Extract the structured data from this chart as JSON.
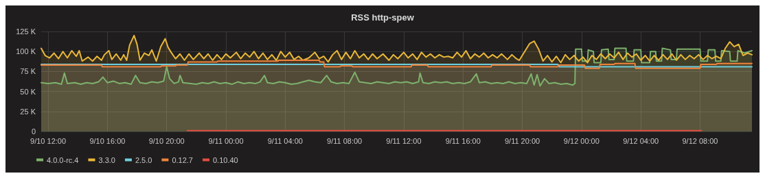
{
  "chart_data": {
    "type": "area",
    "title": "RSS http-spew",
    "xlim": [
      "--09-10T11:32",
      "--09-12T11:30"
    ],
    "xticks": [
      {
        "value": "--09-10T12:00",
        "label": "9/10 12:00"
      },
      {
        "value": "--09-10T16:00",
        "label": "9/10 16:00"
      },
      {
        "value": "--09-10T20:00",
        "label": "9/10 20:00"
      },
      {
        "value": "--09-11T00:00",
        "label": "9/11 00:00"
      },
      {
        "value": "--09-11T04:00",
        "label": "9/11 04:00"
      },
      {
        "value": "--09-11T08:00",
        "label": "9/11 08:00"
      },
      {
        "value": "--09-11T12:00",
        "label": "9/11 12:00"
      },
      {
        "value": "--09-11T16:00",
        "label": "9/11 16:00"
      },
      {
        "value": "--09-11T20:00",
        "label": "9/11 20:00"
      },
      {
        "value": "--09-12T00:00",
        "label": "9/12 00:00"
      },
      {
        "value": "--09-12T04:00",
        "label": "9/12 04:00"
      },
      {
        "value": "--09-12T08:00",
        "label": "9/12 08:00"
      }
    ],
    "ylim": [
      0,
      125
    ],
    "yticks": [
      0,
      {
        "value": 25,
        "label": "25 K"
      },
      {
        "value": 50,
        "label": "50 K"
      },
      {
        "value": 75,
        "label": "75 K"
      },
      {
        "value": 100,
        "label": "100 K"
      },
      {
        "value": 125,
        "label": "125 K"
      }
    ],
    "grid": true,
    "legend": "bottom",
    "line_style": "solid",
    "series": [
      {
        "name": "4.0.0-rc.4",
        "color": "#7eb26d",
        "x": [
          "--09-10T11:32",
          "--09-10T12:00",
          "--09-10T12:30",
          "--09-10T12:54",
          "--09-10T13:06",
          "--09-10T13:18",
          "--09-10T13:48",
          "--09-10T14:12",
          "--09-10T14:36",
          "--09-10T15:00",
          "--09-10T15:24",
          "--09-10T15:42",
          "--09-10T16:00",
          "--09-10T16:24",
          "--09-10T16:48",
          "--09-10T17:12",
          "--09-10T17:36",
          "--09-10T17:54",
          "--09-10T18:12",
          "--09-10T18:36",
          "--09-10T19:00",
          "--09-10T19:24",
          "--09-10T19:48",
          "--09-10T20:00",
          "--09-10T20:12",
          "--09-10T20:30",
          "--09-10T20:48",
          "--09-10T20:54",
          "--09-10T21:06",
          "--09-10T21:36",
          "--09-10T22:00",
          "--09-10T22:24",
          "--09-10T22:48",
          "--09-10T23:12",
          "--09-10T23:36",
          "--09-11T00:00",
          "--09-11T00:24",
          "--09-11T00:48",
          "--09-11T01:12",
          "--09-11T01:36",
          "--09-11T02:00",
          "--09-11T02:18",
          "--09-11T02:36",
          "--09-11T02:48",
          "--09-11T03:12",
          "--09-11T03:36",
          "--09-11T04:00",
          "--09-11T04:24",
          "--09-11T04:48",
          "--09-11T05:12",
          "--09-11T05:36",
          "--09-11T06:00",
          "--09-11T06:24",
          "--09-11T06:48",
          "--09-11T07:06",
          "--09-11T07:30",
          "--09-11T07:54",
          "--09-11T08:18",
          "--09-11T08:42",
          "--09-11T09:00",
          "--09-11T09:24",
          "--09-11T09:48",
          "--09-11T10:12",
          "--09-11T10:36",
          "--09-11T11:00",
          "--09-11T11:24",
          "--09-11T11:48",
          "--09-11T12:12",
          "--09-11T12:36",
          "--09-11T13:00",
          "--09-11T13:06",
          "--09-11T13:18",
          "--09-11T13:42",
          "--09-11T14:06",
          "--09-11T14:30",
          "--09-11T14:54",
          "--09-11T15:18",
          "--09-11T15:42",
          "--09-11T16:06",
          "--09-11T16:30",
          "--09-11T16:54",
          "--09-11T17:06",
          "--09-11T17:30",
          "--09-11T17:54",
          "--09-11T18:18",
          "--09-11T18:42",
          "--09-11T19:06",
          "--09-11T19:30",
          "--09-11T19:54",
          "--09-11T20:18",
          "--09-11T20:36",
          "--09-11T20:48",
          "--09-11T21:00",
          "--09-11T21:12",
          "--09-11T21:30",
          "--09-11T21:48",
          "--09-11T22:12",
          "--09-11T22:36",
          "--09-11T23:00",
          "--09-11T23:24",
          "--09-11T23:33",
          "--09-11T23:36",
          "--09-12T00:00",
          "--09-12T00:03",
          "--09-12T00:24",
          "--09-12T00:27",
          "--09-12T00:48",
          "--09-12T00:51",
          "--09-12T01:18",
          "--09-12T01:21",
          "--09-12T01:48",
          "--09-12T01:51",
          "--09-12T02:12",
          "--09-12T02:15",
          "--09-12T03:00",
          "--09-12T03:03",
          "--09-12T03:30",
          "--09-12T03:33",
          "--09-12T04:00",
          "--09-12T04:03",
          "--09-12T04:36",
          "--09-12T04:39",
          "--09-12T05:00",
          "--09-12T05:03",
          "--09-12T05:24",
          "--09-12T05:27",
          "--09-12T06:00",
          "--09-12T06:03",
          "--09-12T06:24",
          "--09-12T06:27",
          "--09-12T08:00",
          "--09-12T08:03",
          "--09-12T08:30",
          "--09-12T08:33",
          "--09-12T09:00",
          "--09-12T09:03",
          "--09-12T09:24",
          "--09-12T09:27",
          "--09-12T10:00",
          "--09-12T10:03",
          "--09-12T10:30",
          "--09-12T10:33",
          "--09-12T11:00",
          "--09-12T11:30"
        ],
        "values": [
          61,
          60,
          61,
          59,
          73,
          60,
          61,
          59,
          61,
          60,
          62,
          68,
          61,
          63,
          60,
          61,
          59,
          70,
          61,
          60,
          62,
          61,
          63,
          81,
          66,
          60,
          62,
          70,
          61,
          60,
          59,
          61,
          60,
          62,
          60,
          61,
          59,
          62,
          60,
          61,
          60,
          62,
          70,
          61,
          60,
          62,
          61,
          59,
          60,
          62,
          64,
          62,
          61,
          70,
          62,
          60,
          61,
          60,
          74,
          62,
          61,
          60,
          62,
          61,
          60,
          62,
          61,
          62,
          60,
          62,
          73,
          61,
          60,
          62,
          61,
          62,
          60,
          61,
          60,
          62,
          72,
          61,
          62,
          60,
          61,
          60,
          62,
          60,
          61,
          60,
          72,
          58,
          71,
          57,
          66,
          60,
          61,
          59,
          60,
          58,
          60,
          103,
          103,
          88,
          88,
          102,
          100,
          86,
          86,
          102,
          103,
          90,
          90,
          104,
          104,
          88,
          88,
          102,
          102,
          86,
          86,
          100,
          100,
          88,
          88,
          104,
          102,
          90,
          90,
          103,
          103,
          88,
          88,
          102,
          102,
          88,
          88,
          101,
          100,
          88,
          88,
          101,
          98,
          101
        ]
      },
      {
        "name": "3.3.0",
        "color": "#eab839",
        "x": [
          "--09-10T11:32",
          "--09-10T11:48",
          "--09-10T12:06",
          "--09-10T12:24",
          "--09-10T12:42",
          "--09-10T13:00",
          "--09-10T13:18",
          "--09-10T13:36",
          "--09-10T13:54",
          "--09-10T14:06",
          "--09-10T14:18",
          "--09-10T14:42",
          "--09-10T15:00",
          "--09-10T15:18",
          "--09-10T15:36",
          "--09-10T15:48",
          "--09-10T16:06",
          "--09-10T16:18",
          "--09-10T16:36",
          "--09-10T16:54",
          "--09-10T17:06",
          "--09-10T17:18",
          "--09-10T17:30",
          "--09-10T17:48",
          "--09-10T18:00",
          "--09-10T18:12",
          "--09-10T18:30",
          "--09-10T18:48",
          "--09-10T19:00",
          "--09-10T19:18",
          "--09-10T19:36",
          "--09-10T19:54",
          "--09-10T20:06",
          "--09-10T20:18",
          "--09-10T20:36",
          "--09-10T20:54",
          "--09-10T21:12",
          "--09-10T21:30",
          "--09-10T21:48",
          "--09-10T22:12",
          "--09-10T22:30",
          "--09-10T22:48",
          "--09-10T23:06",
          "--09-10T23:24",
          "--09-10T23:42",
          "--09-11T00:00",
          "--09-11T00:18",
          "--09-11T00:42",
          "--09-11T01:00",
          "--09-11T01:18",
          "--09-11T01:36",
          "--09-11T01:54",
          "--09-11T02:12",
          "--09-11T02:30",
          "--09-11T02:48",
          "--09-11T03:06",
          "--09-11T03:24",
          "--09-11T03:42",
          "--09-11T04:00",
          "--09-11T04:18",
          "--09-11T04:36",
          "--09-11T04:54",
          "--09-11T05:12",
          "--09-11T05:36",
          "--09-11T06:00",
          "--09-11T06:18",
          "--09-11T06:36",
          "--09-11T06:54",
          "--09-11T07:12",
          "--09-11T07:30",
          "--09-11T07:48",
          "--09-11T08:06",
          "--09-11T08:24",
          "--09-11T08:42",
          "--09-11T09:00",
          "--09-11T09:18",
          "--09-11T09:36",
          "--09-11T09:54",
          "--09-11T10:12",
          "--09-11T10:36",
          "--09-11T11:00",
          "--09-11T11:18",
          "--09-11T11:36",
          "--09-11T12:00",
          "--09-11T12:18",
          "--09-11T12:36",
          "--09-11T12:54",
          "--09-11T13:12",
          "--09-11T13:30",
          "--09-11T13:48",
          "--09-11T14:06",
          "--09-11T14:24",
          "--09-11T14:42",
          "--09-11T15:00",
          "--09-11T15:18",
          "--09-11T15:36",
          "--09-11T15:54",
          "--09-11T16:12",
          "--09-11T16:30",
          "--09-11T16:48",
          "--09-11T17:06",
          "--09-11T17:24",
          "--09-11T17:42",
          "--09-11T18:00",
          "--09-11T18:18",
          "--09-11T18:36",
          "--09-11T19:00",
          "--09-11T19:18",
          "--09-11T19:36",
          "--09-11T19:48",
          "--09-11T20:12",
          "--09-11T20:30",
          "--09-11T20:48",
          "--09-11T21:06",
          "--09-11T21:24",
          "--09-11T21:42",
          "--09-11T22:00",
          "--09-11T22:18",
          "--09-11T22:36",
          "--09-11T22:54",
          "--09-11T23:12",
          "--09-11T23:30",
          "--09-11T23:48",
          "--09-12T00:06",
          "--09-12T00:24",
          "--09-12T00:42",
          "--09-12T01:00",
          "--09-12T01:18",
          "--09-12T01:36",
          "--09-12T01:54",
          "--09-12T02:12",
          "--09-12T02:30",
          "--09-12T02:48",
          "--09-12T03:06",
          "--09-12T03:24",
          "--09-12T03:42",
          "--09-12T04:00",
          "--09-12T04:18",
          "--09-12T04:36",
          "--09-12T04:54",
          "--09-12T05:12",
          "--09-12T05:30",
          "--09-12T05:48",
          "--09-12T06:06",
          "--09-12T06:24",
          "--09-12T06:42",
          "--09-12T07:00",
          "--09-12T07:18",
          "--09-12T07:36",
          "--09-12T07:54",
          "--09-12T08:12",
          "--09-12T08:30",
          "--09-12T08:48",
          "--09-12T09:06",
          "--09-12T09:24",
          "--09-12T09:42",
          "--09-12T10:00",
          "--09-12T10:18",
          "--09-12T10:36",
          "--09-12T10:54",
          "--09-12T11:12",
          "--09-12T11:30"
        ],
        "values": [
          104,
          95,
          92,
          98,
          91,
          100,
          92,
          101,
          94,
          101,
          88,
          93,
          88,
          94,
          89,
          96,
          101,
          90,
          97,
          89,
          96,
          89,
          108,
          120,
          109,
          89,
          98,
          95,
          102,
          88,
          106,
          116,
          105,
          99,
          91,
          97,
          89,
          97,
          90,
          98,
          91,
          97,
          89,
          96,
          90,
          97,
          92,
          99,
          91,
          98,
          93,
          100,
          91,
          98,
          90,
          96,
          89,
          100,
          93,
          99,
          90,
          94,
          89,
          92,
          99,
          91,
          94,
          87,
          96,
          101,
          90,
          99,
          91,
          101,
          92,
          97,
          90,
          97,
          91,
          97,
          89,
          96,
          91,
          99,
          92,
          97,
          90,
          99,
          93,
          97,
          92,
          96,
          93,
          94,
          92,
          99,
          93,
          101,
          91,
          97,
          93,
          98,
          92,
          96,
          92,
          97,
          90,
          96,
          91,
          89,
          101,
          110,
          113,
          103,
          88,
          95,
          87,
          94,
          86,
          96,
          90,
          95,
          88,
          93,
          86,
          95,
          90,
          97,
          91,
          97,
          92,
          99,
          90,
          98,
          93,
          97,
          89,
          95,
          88,
          95,
          89,
          96,
          90,
          97,
          89,
          96,
          90,
          95,
          91,
          96,
          90,
          95,
          91,
          94,
          91,
          104,
          112,
          106,
          109,
          95,
          98,
          96
        ]
      },
      {
        "name": "2.5.0",
        "color": "#6ed0e0",
        "x": [
          "--09-10T11:32",
          "--09-11T22:24",
          "--09-11T22:30",
          "--09-12T11:30"
        ],
        "values": [
          84,
          84,
          81,
          81
        ]
      },
      {
        "name": "0.12.7",
        "color": "#ef843c",
        "x": [
          "--09-10T11:32",
          "--09-10T15:36",
          "--09-10T15:39",
          "--09-10T19:36",
          "--09-10T19:39",
          "--09-10T20:36",
          "--09-10T20:39",
          "--09-10T21:24",
          "--09-10T21:27",
          "--09-10T23:24",
          "--09-10T23:27",
          "--09-11T03:30",
          "--09-11T03:33",
          "--09-11T06:18",
          "--09-11T06:21",
          "--09-11T06:36",
          "--09-11T06:39",
          "--09-11T07:42",
          "--09-11T07:45",
          "--09-11T08:30",
          "--09-11T08:33",
          "--09-11T12:30",
          "--09-11T12:33",
          "--09-11T13:36",
          "--09-11T13:39",
          "--09-11T17:54",
          "--09-11T17:57",
          "--09-11T20:30",
          "--09-11T20:33",
          "--09-11T22:24",
          "--09-11T22:27",
          "--09-12T00:12",
          "--09-12T00:15",
          "--09-12T01:12",
          "--09-12T01:15",
          "--09-12T02:12",
          "--09-12T02:15",
          "--09-12T03:36",
          "--09-12T03:39",
          "--09-12T08:00",
          "--09-12T08:03",
          "--09-12T09:06",
          "--09-12T09:09",
          "--09-12T11:30"
        ],
        "values": [
          83,
          83,
          81,
          81,
          82,
          82,
          83,
          83,
          87,
          87,
          88,
          88,
          89,
          89,
          87,
          87,
          81,
          81,
          82,
          82,
          81,
          81,
          83,
          83,
          81,
          81,
          83,
          83,
          81,
          81,
          83,
          83,
          79,
          79,
          84,
          84,
          85,
          85,
          79,
          79,
          84,
          84,
          85,
          85
        ]
      },
      {
        "name": "0.10.40",
        "color": "#e24d42",
        "type": "line",
        "x": [
          "--09-10T21:24",
          "--09-12T08:06"
        ],
        "values": [
          1,
          1
        ]
      }
    ]
  }
}
